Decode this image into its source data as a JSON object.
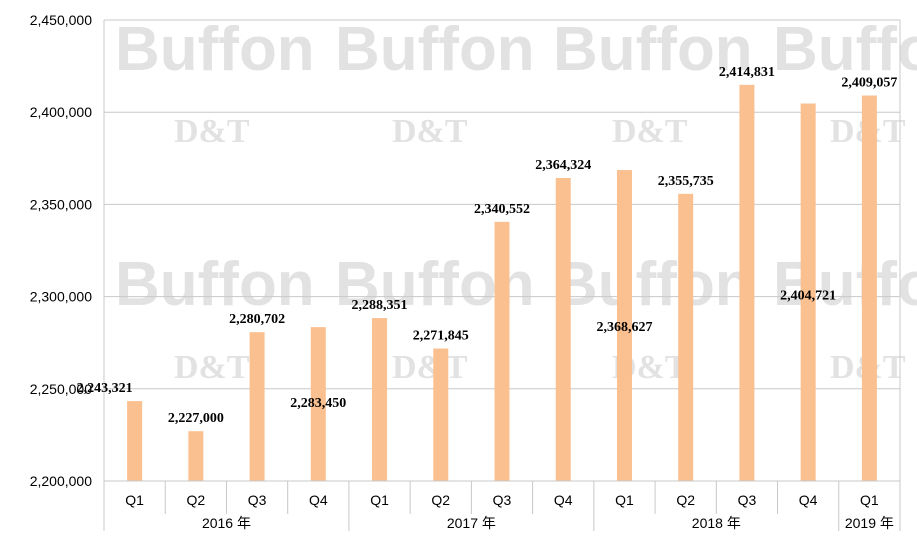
{
  "chart_data": {
    "type": "bar",
    "title": "",
    "xlabel": "",
    "ylabel": "",
    "ylim": [
      2200000,
      2450000
    ],
    "y_ticks": [
      2200000,
      2250000,
      2300000,
      2350000,
      2400000,
      2450000
    ],
    "y_tick_labels": [
      "2,200,000",
      "2,250,000",
      "2,300,000",
      "2,350,000",
      "2,400,000",
      "2,450,000"
    ],
    "grid": true,
    "legend": "none",
    "bar_color": "#fac090",
    "categories": [
      "Q1",
      "Q2",
      "Q3",
      "Q4",
      "Q1",
      "Q2",
      "Q3",
      "Q4",
      "Q1",
      "Q2",
      "Q3",
      "Q4",
      "Q1"
    ],
    "groups": [
      {
        "label": "2016 年",
        "count": 4
      },
      {
        "label": "2017 年",
        "count": 4
      },
      {
        "label": "2018 年",
        "count": 4
      },
      {
        "label": "2019 年",
        "count": 1
      }
    ],
    "values": [
      2243321,
      2227000,
      2280702,
      2283450,
      2288351,
      2271845,
      2340552,
      2364324,
      2368627,
      2355735,
      2414831,
      2404721,
      2409057
    ],
    "data_labels": [
      "2,243,321",
      "2,227,000",
      "2,280,702",
      "2,283,450",
      "2,288,351",
      "2,271,845",
      "2,340,552",
      "2,364,324",
      "2,368,627",
      "2,355,735",
      "2,414,831",
      "2,404,721",
      "2,409,057"
    ]
  },
  "watermark": {
    "brand": "Buffon",
    "sub": "D&T"
  }
}
